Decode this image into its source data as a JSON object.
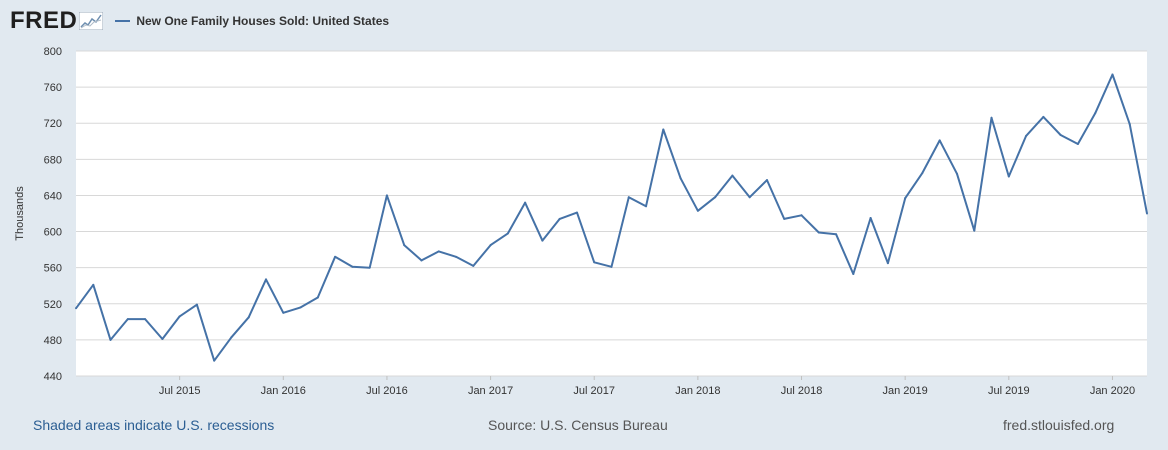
{
  "header": {
    "logo_text": "FRED",
    "series_title": "New One Family Houses Sold: United States"
  },
  "footer": {
    "recession_note": "Shaded areas indicate U.S. recessions",
    "source": "Source: U.S. Census Bureau",
    "site": "fred.stlouisfed.org"
  },
  "colors": {
    "page_background": "#e1e9f0",
    "plot_background": "#ffffff",
    "series_line": "#4572a7",
    "gridline": "#d8d8d8"
  },
  "chart_data": {
    "type": "line",
    "title": "New One Family Houses Sold: United States",
    "ylabel": "Thousands",
    "xlabel": "",
    "ylim": [
      440,
      800
    ],
    "yticks": [
      440,
      480,
      520,
      560,
      600,
      640,
      680,
      720,
      760,
      800
    ],
    "xlim": [
      "2015-01",
      "2020-03"
    ],
    "xticks": [
      {
        "date": "2015-07",
        "label": "Jul 2015"
      },
      {
        "date": "2016-01",
        "label": "Jan 2016"
      },
      {
        "date": "2016-07",
        "label": "Jul 2016"
      },
      {
        "date": "2017-01",
        "label": "Jan 2017"
      },
      {
        "date": "2017-07",
        "label": "Jul 2017"
      },
      {
        "date": "2018-01",
        "label": "Jan 2018"
      },
      {
        "date": "2018-07",
        "label": "Jul 2018"
      },
      {
        "date": "2019-01",
        "label": "Jan 2019"
      },
      {
        "date": "2019-07",
        "label": "Jul 2019"
      },
      {
        "date": "2020-01",
        "label": "Jan 2020"
      }
    ],
    "grid": true,
    "legend": "top-left",
    "series": [
      {
        "name": "New One Family Houses Sold: United States",
        "color": "#4572a7",
        "x": [
          "2015-01",
          "2015-02",
          "2015-03",
          "2015-04",
          "2015-05",
          "2015-06",
          "2015-07",
          "2015-08",
          "2015-09",
          "2015-10",
          "2015-11",
          "2015-12",
          "2016-01",
          "2016-02",
          "2016-03",
          "2016-04",
          "2016-05",
          "2016-06",
          "2016-07",
          "2016-08",
          "2016-09",
          "2016-10",
          "2016-11",
          "2016-12",
          "2017-01",
          "2017-02",
          "2017-03",
          "2017-04",
          "2017-05",
          "2017-06",
          "2017-07",
          "2017-08",
          "2017-09",
          "2017-10",
          "2017-11",
          "2017-12",
          "2018-01",
          "2018-02",
          "2018-03",
          "2018-04",
          "2018-05",
          "2018-06",
          "2018-07",
          "2018-08",
          "2018-09",
          "2018-10",
          "2018-11",
          "2018-12",
          "2019-01",
          "2019-02",
          "2019-03",
          "2019-04",
          "2019-05",
          "2019-06",
          "2019-07",
          "2019-08",
          "2019-09",
          "2019-10",
          "2019-11",
          "2019-12",
          "2020-01",
          "2020-02",
          "2020-03"
        ],
        "values": [
          515,
          541,
          480,
          503,
          503,
          481,
          506,
          519,
          457,
          483,
          505,
          547,
          510,
          516,
          527,
          572,
          561,
          560,
          640,
          585,
          568,
          578,
          572,
          562,
          585,
          598,
          632,
          590,
          614,
          621,
          566,
          561,
          638,
          628,
          713,
          659,
          623,
          638,
          662,
          638,
          657,
          614,
          618,
          599,
          597,
          553,
          615,
          565,
          637,
          665,
          701,
          664,
          601,
          726,
          661,
          706,
          727,
          707,
          697,
          731,
          774,
          719,
          620
        ]
      }
    ]
  }
}
